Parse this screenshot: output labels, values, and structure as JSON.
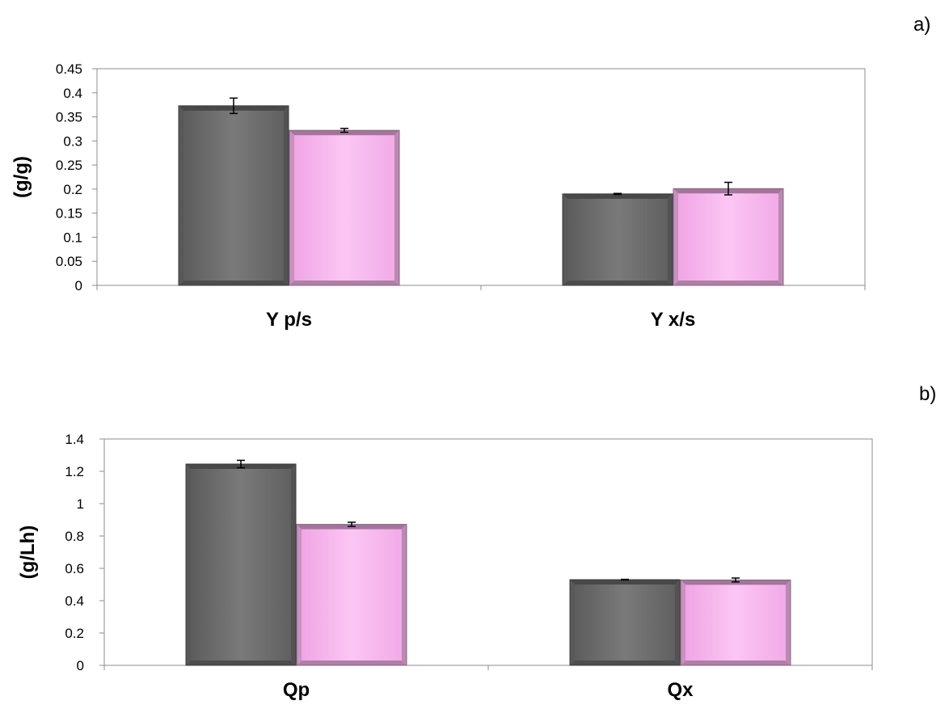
{
  "chart_data": [
    {
      "type": "bar",
      "panel_label": "a)",
      "title": "",
      "xlabel": "",
      "ylabel": "(g/g)",
      "ylim": [
        0,
        0.45
      ],
      "yticks": [
        "0",
        "0.05",
        "0.1",
        "0.15",
        "0.2",
        "0.25",
        "0.3",
        "0.35",
        "0.4",
        "0.45"
      ],
      "categories": [
        "Y p/s",
        "Y x/s"
      ],
      "series": [
        {
          "color": "#6e6e6e",
          "values": [
            0.373,
            0.19
          ],
          "errors": [
            0.016,
            0.001
          ]
        },
        {
          "color": "#f9b6ef",
          "values": [
            0.322,
            0.201
          ],
          "errors": [
            0.004,
            0.013
          ]
        }
      ],
      "grid": false,
      "legend": "none"
    },
    {
      "type": "bar",
      "panel_label": "b)",
      "title": "",
      "xlabel": "",
      "ylabel": "(g/Lh)",
      "ylim": [
        0,
        1.4
      ],
      "yticks": [
        "0",
        "0.2",
        "0.4",
        "0.6",
        "0.8",
        "1",
        "1.2",
        "1.4"
      ],
      "categories": [
        "Qp",
        "Qx"
      ],
      "series": [
        {
          "color": "#6e6e6e",
          "values": [
            1.245,
            0.53
          ],
          "errors": [
            0.023,
            0.002
          ]
        },
        {
          "color": "#f9b6ef",
          "values": [
            0.872,
            0.528
          ],
          "errors": [
            0.013,
            0.012
          ]
        }
      ],
      "grid": false,
      "legend": "none"
    }
  ]
}
